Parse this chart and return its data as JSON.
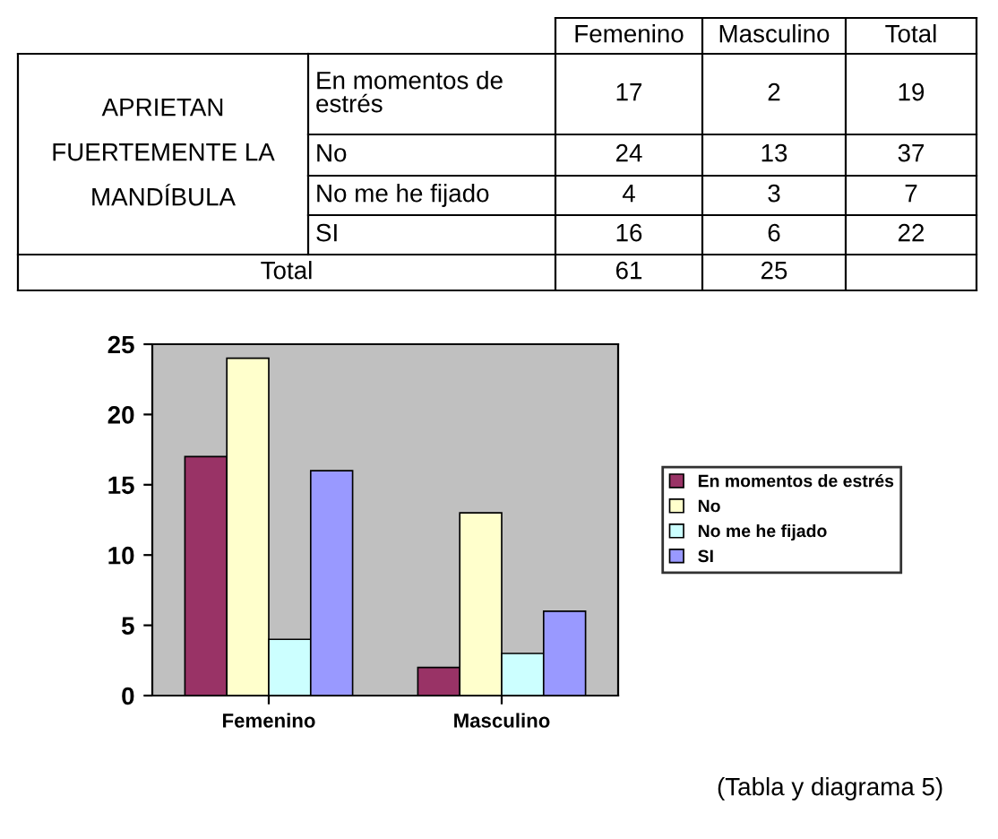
{
  "chart_data": [
    {
      "type": "other",
      "annotations": [
        "Femenino",
        "Masculino",
        "Total",
        "APRIETAN\nFUERTEMENTE LA\nMANDÍBULA",
        "En momentos de\nestrés",
        "17",
        "2",
        "19",
        "No",
        "24",
        "13",
        "37",
        "No me he fijado",
        "4",
        "3",
        "7",
        "SI",
        "16",
        "6",
        "22",
        "Total",
        "61",
        "25"
      ]
    },
    {
      "type": "bar",
      "categories": [
        "Femenino",
        "Masculino"
      ],
      "series": [
        {
          "name": "En momentos de estrés",
          "color": "#993366",
          "values": [
            17,
            2
          ]
        },
        {
          "name": "No",
          "color": "#ffffcc",
          "values": [
            24,
            13
          ]
        },
        {
          "name": "No me he fijado",
          "color": "#ccffff",
          "values": [
            4,
            3
          ]
        },
        {
          "name": "SI",
          "color": "#9999ff",
          "values": [
            16,
            6
          ]
        }
      ],
      "ylim": [
        0,
        25
      ],
      "yticks": [
        0,
        5,
        10,
        15,
        20,
        25
      ],
      "legend": "right",
      "annotations": [
        "(Tabla y diagrama 5)"
      ]
    }
  ]
}
